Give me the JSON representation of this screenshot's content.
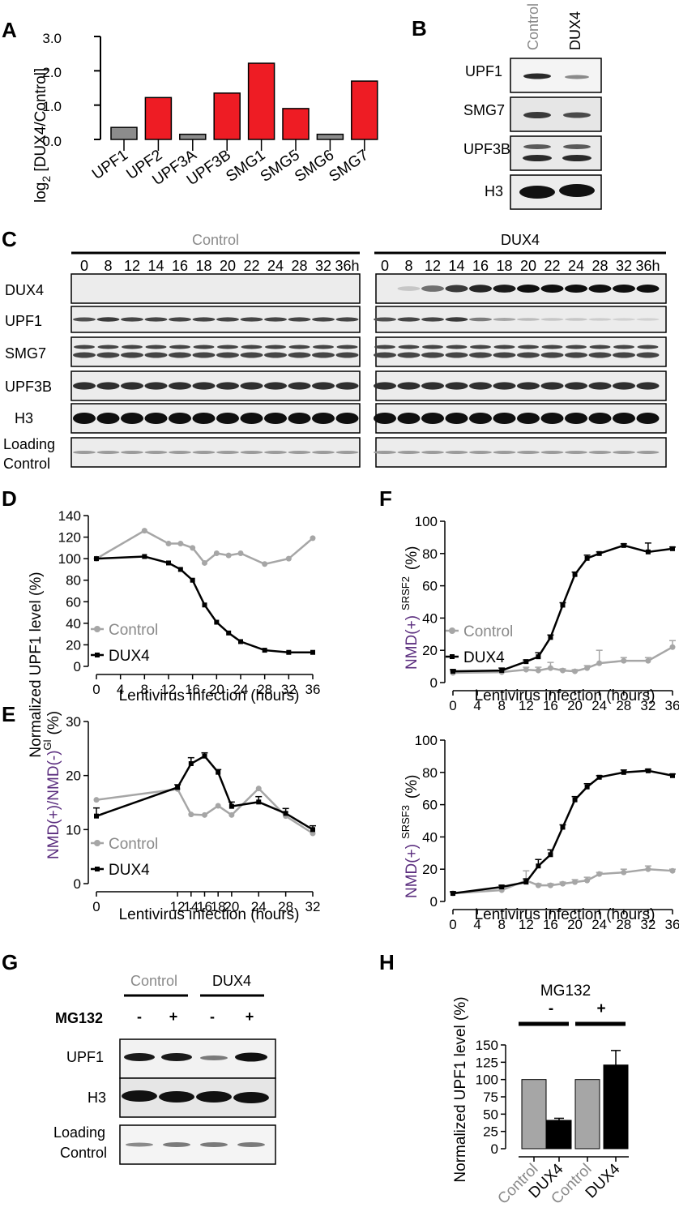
{
  "panels": {
    "A": {
      "letter": "A",
      "chart_data": {
        "type": "bar",
        "categories": [
          "UPF1",
          "UPF2",
          "UPF3A",
          "UPF3B",
          "SMG1",
          "SMG5",
          "SMG6",
          "SMG7"
        ],
        "values": [
          0.35,
          1.22,
          0.15,
          1.35,
          2.22,
          0.9,
          0.15,
          1.7
        ],
        "bar_colors": [
          "#8c8c8c",
          "#ee1c24",
          "#8c8c8c",
          "#ee1c24",
          "#ee1c24",
          "#ee1c24",
          "#8c8c8c",
          "#ee1c24"
        ],
        "ylabel_main": "log",
        "ylabel_sub": "2",
        "ylabel_rest": " [DUX4/Control]",
        "yticks": [
          "0.0",
          "1.0",
          "2.0",
          "3.0"
        ],
        "ytick_values": [
          0,
          1,
          2,
          3
        ],
        "ylim": [
          0,
          3
        ]
      }
    },
    "B": {
      "letter": "B",
      "lanes": [
        "Control",
        "DUX4"
      ],
      "rows": [
        "UPF1",
        "SMG7",
        "UPF3B",
        "H3"
      ]
    },
    "C": {
      "letter": "C",
      "groups": [
        "Control",
        "DUX4"
      ],
      "timepoints": [
        "0",
        "8",
        "12",
        "14",
        "16",
        "18",
        "20",
        "22",
        "24",
        "28",
        "32",
        "36h"
      ],
      "rows": [
        "DUX4",
        "UPF1",
        "SMG7",
        "UPF3B",
        "H3",
        "Loading",
        "Control"
      ]
    },
    "D": {
      "letter": "D",
      "chart_data": {
        "type": "line",
        "x": [
          0,
          8,
          12,
          14,
          16,
          18,
          20,
          22,
          24,
          28,
          32,
          36
        ],
        "series": [
          {
            "name": "Control",
            "color": "#a6a6a6",
            "values": [
              100,
              126,
              114,
              114,
              110,
              96,
              105,
              103,
              105,
              95,
              100,
              119
            ]
          },
          {
            "name": "DUX4",
            "color": "#000000",
            "values": [
              100,
              102,
              96,
              90,
              80,
              57,
              41,
              31,
              23,
              15,
              13,
              13
            ]
          }
        ],
        "xticks": [
          0,
          4,
          8,
          12,
          16,
          20,
          24,
          28,
          32,
          36
        ],
        "yticks": [
          0,
          20,
          40,
          60,
          80,
          100,
          120,
          140
        ],
        "xlim": [
          0,
          36
        ],
        "ylim": [
          0,
          140
        ],
        "xlabel": "Lentivirus infection (hours)",
        "ylabel": "Normalized UPF1 level (%)"
      }
    },
    "E": {
      "letter": "E",
      "chart_data": {
        "type": "line",
        "x": [
          0,
          12,
          14,
          16,
          18,
          20,
          24,
          28,
          32
        ],
        "series": [
          {
            "name": "Control",
            "color": "#a6a6a6",
            "values": [
              15.5,
              17.5,
              12.8,
              12.7,
              14.4,
              12.7,
              17.6,
              12.5,
              9.3
            ]
          },
          {
            "name": "DUX4",
            "color": "#000000",
            "values": [
              12.5,
              17.8,
              22.2,
              23.6,
              20.6,
              14.3,
              15.1,
              13.0,
              10.0
            ],
            "err": [
              1.5,
              0.5,
              1.1,
              0.6,
              0.5,
              0.8,
              1.0,
              0.9,
              0.7
            ]
          }
        ],
        "xlim": [
          0,
          32
        ],
        "ylim": [
          0,
          30
        ],
        "yticks": [
          0,
          10,
          20,
          30
        ],
        "xlabel": "Lentivirus infection (hours)",
        "ylabel_main": "NMD(+)/NMD(-)",
        "ylabel_sup": "Gl",
        "ylabel_unit": "(%)"
      }
    },
    "F": {
      "letter": "F",
      "charts": [
        {
          "chart_data": {
            "type": "line",
            "x": [
              0,
              8,
              12,
              14,
              16,
              18,
              20,
              22,
              24,
              28,
              32,
              36
            ],
            "series": [
              {
                "name": "Control",
                "color": "#a6a6a6",
                "values": [
                  6,
                  6.5,
                  8,
                  7.5,
                  9,
                  7.5,
                  7,
                  9,
                  12,
                  13.5,
                  13.5,
                  22
                ],
                "err": [
                  1,
                  1,
                  1.5,
                  2,
                  3.5,
                  1,
                  1,
                  1.5,
                  8,
                  2,
                  2,
                  4
                ]
              },
              {
                "name": "DUX4",
                "color": "#000000",
                "values": [
                  7,
                  7.5,
                  13,
                  16,
                  28,
                  48,
                  67,
                  77,
                  80,
                  85,
                  81,
                  83
                ],
                "err": [
                  1,
                  1.5,
                  1,
                  2.5,
                  1.5,
                  1.5,
                  1.5,
                  2,
                  1,
                  1,
                  5.5,
                  1
                ]
              }
            ],
            "xticks": [
              0,
              4,
              8,
              12,
              16,
              20,
              24,
              28,
              32,
              36
            ],
            "yticks": [
              0,
              20,
              40,
              60,
              80,
              100
            ],
            "xlim": [
              0,
              36
            ],
            "ylim": [
              0,
              100
            ],
            "xlabel": "Lentivirus infection (hours)",
            "ylabel_main": "NMD(+)",
            "ylabel_sup": "SRSF2",
            "ylabel_unit": "(%)"
          }
        },
        {
          "chart_data": {
            "type": "line",
            "x": [
              0,
              8,
              12,
              14,
              16,
              18,
              20,
              22,
              24,
              28,
              32,
              36
            ],
            "series": [
              {
                "name": "Control",
                "color": "#a6a6a6",
                "values": [
                  5,
                  7,
                  13,
                  10,
                  10,
                  11,
                  12,
                  13,
                  17,
                  18,
                  20,
                  19
                ],
                "err": [
                  1,
                  1,
                  6,
                  1,
                  1,
                  1,
                  1.5,
                  2,
                  1,
                  2,
                  2,
                  1
                ]
              },
              {
                "name": "DUX4",
                "color": "#000000",
                "values": [
                  5,
                  9,
                  12,
                  22,
                  29,
                  46,
                  63,
                  71,
                  77,
                  80,
                  81,
                  78
                ],
                "err": [
                  1,
                  1,
                  2,
                  4,
                  3,
                  1.5,
                  2,
                  2,
                  1,
                  1.5,
                  1,
                  1
                ]
              }
            ],
            "xticks": [
              0,
              4,
              8,
              12,
              16,
              20,
              24,
              28,
              32,
              36
            ],
            "yticks": [
              0,
              20,
              40,
              60,
              80,
              100
            ],
            "xlim": [
              0,
              36
            ],
            "ylim": [
              0,
              100
            ],
            "xlabel": "Lentivirus infection (hours)",
            "ylabel_main": "NMD(+)",
            "ylabel_sup": "SRSF3",
            "ylabel_unit": "(%)"
          }
        }
      ]
    },
    "G": {
      "letter": "G",
      "groups": [
        "Control",
        "DUX4"
      ],
      "treatment_label": "MG132",
      "treatment_signs": [
        "-",
        "+",
        "-",
        "+"
      ],
      "rows": [
        "UPF1",
        "H3",
        "Loading",
        "Control"
      ]
    },
    "H": {
      "letter": "H",
      "chart_data": {
        "type": "bar",
        "header": "MG132",
        "header_signs": [
          "-",
          "+"
        ],
        "categories": [
          "Control",
          "DUX4",
          "Control",
          "DUX4"
        ],
        "values": [
          100,
          41,
          100,
          121
        ],
        "err": [
          0,
          3,
          0,
          21
        ],
        "bar_colors": [
          "#a6a6a6",
          "#000000",
          "#a6a6a6",
          "#000000"
        ],
        "yticks": [
          0,
          25,
          50,
          75,
          100,
          125,
          150
        ],
        "ylim": [
          0,
          150
        ],
        "ylabel": "Normalized UPF1 level (%)"
      }
    }
  }
}
